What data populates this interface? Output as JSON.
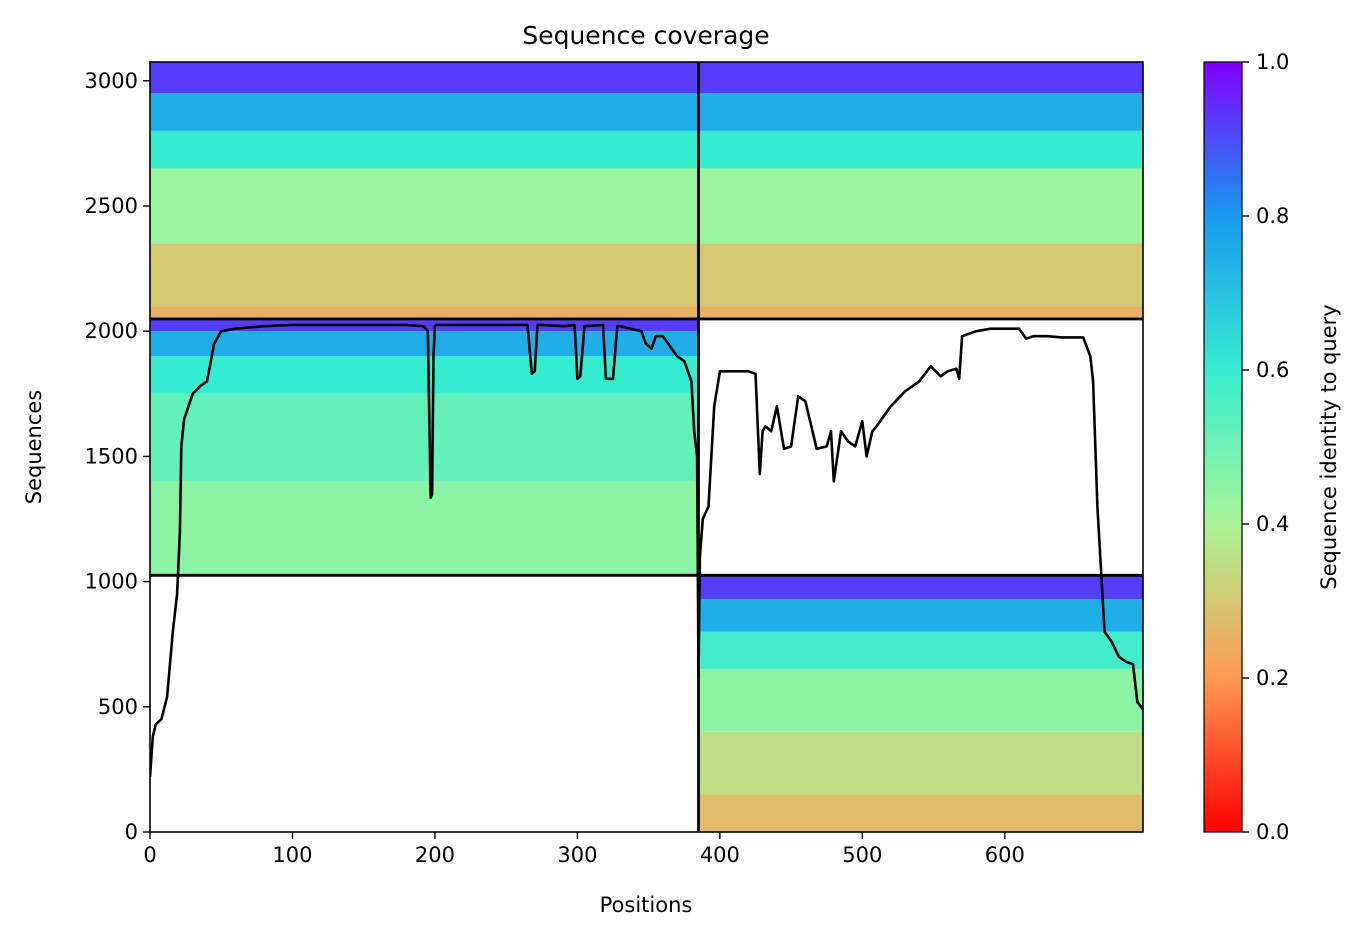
{
  "chart_data": {
    "type": "heatmap",
    "title": "Sequence coverage",
    "xlabel": "Positions",
    "ylabel": "Sequences",
    "colorbar_label": "Sequence identity to query",
    "xlim": [
      0,
      697
    ],
    "ylim": [
      0,
      3075
    ],
    "x_ticks": [
      0,
      100,
      200,
      300,
      400,
      500,
      600
    ],
    "y_ticks": [
      0,
      500,
      1000,
      1500,
      2000,
      2500,
      3000
    ],
    "colorbar_ticks": [
      "0.0",
      "0.2",
      "0.4",
      "0.6",
      "0.8",
      "1.0"
    ],
    "colormap": "rainbow",
    "grid": false,
    "chain_boundaries_x": [
      385
    ],
    "chain_boundaries_y": [
      1025,
      2049
    ],
    "coverage_blocks": [
      {
        "name": "block-top-left",
        "x": [
          0,
          385
        ],
        "y": [
          2049,
          3075
        ],
        "bands": [
          {
            "y": [
              2049,
              2100
            ],
            "identity": 0.25
          },
          {
            "y": [
              2100,
              2350
            ],
            "identity": 0.3
          },
          {
            "y": [
              2350,
              2650
            ],
            "identity": 0.42
          },
          {
            "y": [
              2650,
              2800
            ],
            "identity": 0.6
          },
          {
            "y": [
              2800,
              2950
            ],
            "identity": 0.75
          },
          {
            "y": [
              2950,
              3075
            ],
            "identity": 0.92
          }
        ]
      },
      {
        "name": "block-top-right",
        "x": [
          385,
          697
        ],
        "y": [
          2049,
          3075
        ],
        "bands": [
          {
            "y": [
              2049,
              2100
            ],
            "identity": 0.25
          },
          {
            "y": [
              2100,
              2350
            ],
            "identity": 0.3
          },
          {
            "y": [
              2350,
              2650
            ],
            "identity": 0.42
          },
          {
            "y": [
              2650,
              2800
            ],
            "identity": 0.6
          },
          {
            "y": [
              2800,
              2950
            ],
            "identity": 0.75
          },
          {
            "y": [
              2950,
              3075
            ],
            "identity": 0.92
          }
        ]
      },
      {
        "name": "block-middle-left",
        "x": [
          0,
          385
        ],
        "y": [
          1025,
          2049
        ],
        "bands": [
          {
            "y": [
              1025,
              1400
            ],
            "identity": 0.45
          },
          {
            "y": [
              1400,
              1750
            ],
            "identity": 0.52
          },
          {
            "y": [
              1750,
              1900
            ],
            "identity": 0.6
          },
          {
            "y": [
              1900,
              2000
            ],
            "identity": 0.75
          },
          {
            "y": [
              2000,
              2049
            ],
            "identity": 0.92
          }
        ]
      },
      {
        "name": "block-bottom-right",
        "x": [
          385,
          697
        ],
        "y": [
          0,
          1025
        ],
        "bands": [
          {
            "y": [
              0,
              150
            ],
            "identity": 0.27
          },
          {
            "y": [
              150,
              400
            ],
            "identity": 0.35
          },
          {
            "y": [
              400,
              650
            ],
            "identity": 0.45
          },
          {
            "y": [
              650,
              800
            ],
            "identity": 0.58
          },
          {
            "y": [
              800,
              930
            ],
            "identity": 0.75
          },
          {
            "y": [
              930,
              1025
            ],
            "identity": 0.92
          }
        ]
      }
    ],
    "coverage_line": {
      "x": [
        0,
        2,
        4,
        8,
        12,
        16,
        19,
        21,
        22,
        24,
        27,
        30,
        35,
        40,
        45,
        50,
        60,
        80,
        100,
        120,
        140,
        160,
        180,
        192,
        195,
        197,
        198,
        199,
        200,
        201,
        202,
        210,
        230,
        250,
        265,
        268,
        270,
        272,
        275,
        290,
        298,
        300,
        302,
        305,
        318,
        320,
        322,
        325,
        328,
        330,
        345,
        348,
        352,
        355,
        357,
        360,
        370,
        375,
        380,
        382,
        384,
        385,
        386,
        388,
        392,
        396,
        400,
        410,
        420,
        425,
        428,
        430,
        432,
        436,
        440,
        445,
        450,
        455,
        460,
        468,
        475,
        478,
        480,
        485,
        490,
        495,
        500,
        503,
        507,
        510,
        520,
        530,
        540,
        548,
        555,
        560,
        566,
        568,
        570,
        580,
        590,
        600,
        610,
        615,
        620,
        630,
        640,
        655,
        660,
        662,
        665,
        668,
        670,
        675,
        680,
        685,
        690,
        693,
        697
      ],
      "y": [
        220,
        380,
        430,
        450,
        540,
        800,
        950,
        1200,
        1540,
        1650,
        1700,
        1750,
        1780,
        1800,
        1950,
        2000,
        2010,
        2020,
        2025,
        2025,
        2025,
        2025,
        2025,
        2020,
        2000,
        1335,
        1350,
        1900,
        2020,
        2025,
        2025,
        2025,
        2025,
        2025,
        2025,
        1830,
        1840,
        2025,
        2025,
        2020,
        2025,
        1810,
        1820,
        2020,
        2025,
        1810,
        1810,
        1810,
        2020,
        2020,
        2000,
        1950,
        1930,
        1980,
        1980,
        1980,
        1900,
        1880,
        1800,
        1600,
        1500,
        620,
        1100,
        1250,
        1300,
        1700,
        1840,
        1840,
        1840,
        1830,
        1430,
        1600,
        1620,
        1600,
        1700,
        1530,
        1540,
        1740,
        1720,
        1530,
        1540,
        1600,
        1400,
        1600,
        1560,
        1540,
        1640,
        1500,
        1600,
        1620,
        1700,
        1760,
        1800,
        1860,
        1820,
        1840,
        1850,
        1810,
        1980,
        2000,
        2010,
        2010,
        2010,
        1970,
        1980,
        1980,
        1975,
        1975,
        1900,
        1800,
        1300,
        1000,
        800,
        760,
        700,
        680,
        670,
        520,
        490
      ]
    }
  }
}
